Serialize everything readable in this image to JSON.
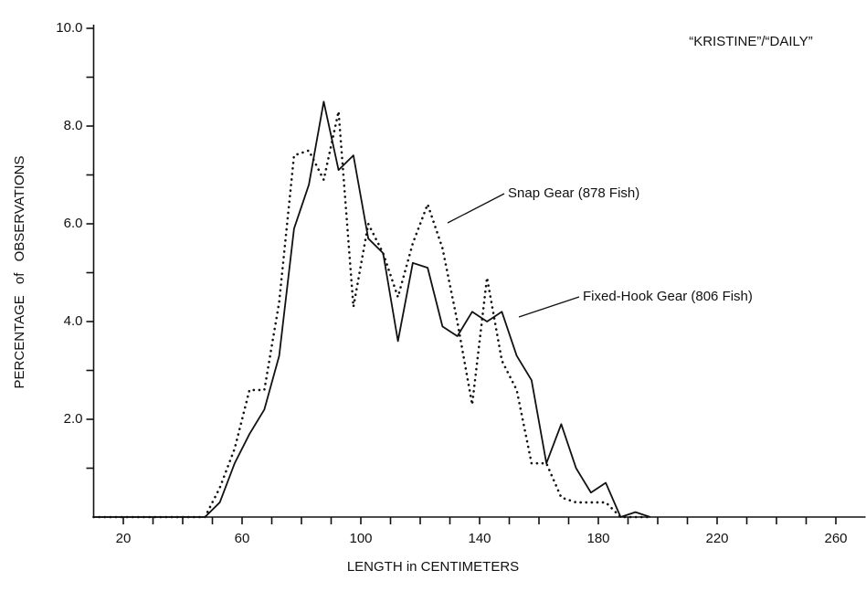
{
  "chart_data": {
    "type": "line",
    "x_label": "LENGTH in CENTIMETERS",
    "y_label": "PERCENTAGE of OBSERVATIONS",
    "annotations": [
      "“KRISTINE”/“DAILY”",
      "Snap Gear (878 Fish)",
      "Fixed-Hook Gear (806 Fish)"
    ],
    "x": [
      10,
      47.5,
      52.5,
      57.5,
      62.5,
      67.5,
      72.5,
      77.5,
      82.5,
      87.5,
      92.5,
      97.5,
      102.5,
      107.5,
      112.5,
      117.5,
      122.5,
      127.5,
      132.5,
      137.5,
      142.5,
      147.5,
      152.5,
      157.5,
      162.5,
      167.5,
      172.5,
      177.5,
      182.5,
      187.5,
      192.5,
      197.5
    ],
    "series": [
      {
        "name": "Fixed-Hook Gear (806 Fish)",
        "color": "#111111",
        "style": "solid",
        "values": [
          0,
          0,
          0.3,
          1.1,
          1.7,
          2.2,
          3.3,
          5.9,
          6.8,
          8.5,
          7.1,
          7.4,
          5.7,
          5.4,
          3.6,
          5.2,
          5.1,
          3.9,
          3.7,
          4.2,
          4.0,
          4.2,
          3.3,
          2.8,
          1.1,
          1.9,
          1.0,
          0.5,
          0.7,
          0,
          0.1,
          0
        ]
      },
      {
        "name": "Snap Gear (878 Fish)",
        "color": "#111111",
        "style": "dotted",
        "values": [
          0,
          0,
          0.6,
          1.4,
          2.6,
          2.6,
          4.4,
          7.4,
          7.5,
          6.9,
          8.3,
          4.3,
          6.0,
          5.4,
          4.5,
          5.6,
          6.4,
          5.5,
          4.0,
          2.3,
          4.9,
          3.2,
          2.6,
          1.1,
          1.1,
          0.4,
          0.3,
          0.3,
          0.3,
          0,
          0,
          0
        ]
      }
    ],
    "xlim": [
      10,
      270
    ],
    "xticks": [
      20,
      60,
      100,
      140,
      180,
      220,
      260
    ],
    "xminorticks": [
      30,
      40,
      50,
      70,
      80,
      90,
      110,
      120,
      130,
      150,
      160,
      170,
      190,
      200,
      210,
      230,
      240,
      250
    ],
    "ylim": [
      0,
      10
    ],
    "yticks": [
      {
        "value": 2,
        "label": "2.0"
      },
      {
        "value": 4,
        "label": "4.0"
      },
      {
        "value": 6,
        "label": "6.0"
      },
      {
        "value": 8,
        "label": "8.0"
      },
      {
        "value": 10,
        "label": "10.0"
      }
    ],
    "yminorticks": [
      1,
      3,
      5,
      7,
      9
    ],
    "grid": false
  }
}
